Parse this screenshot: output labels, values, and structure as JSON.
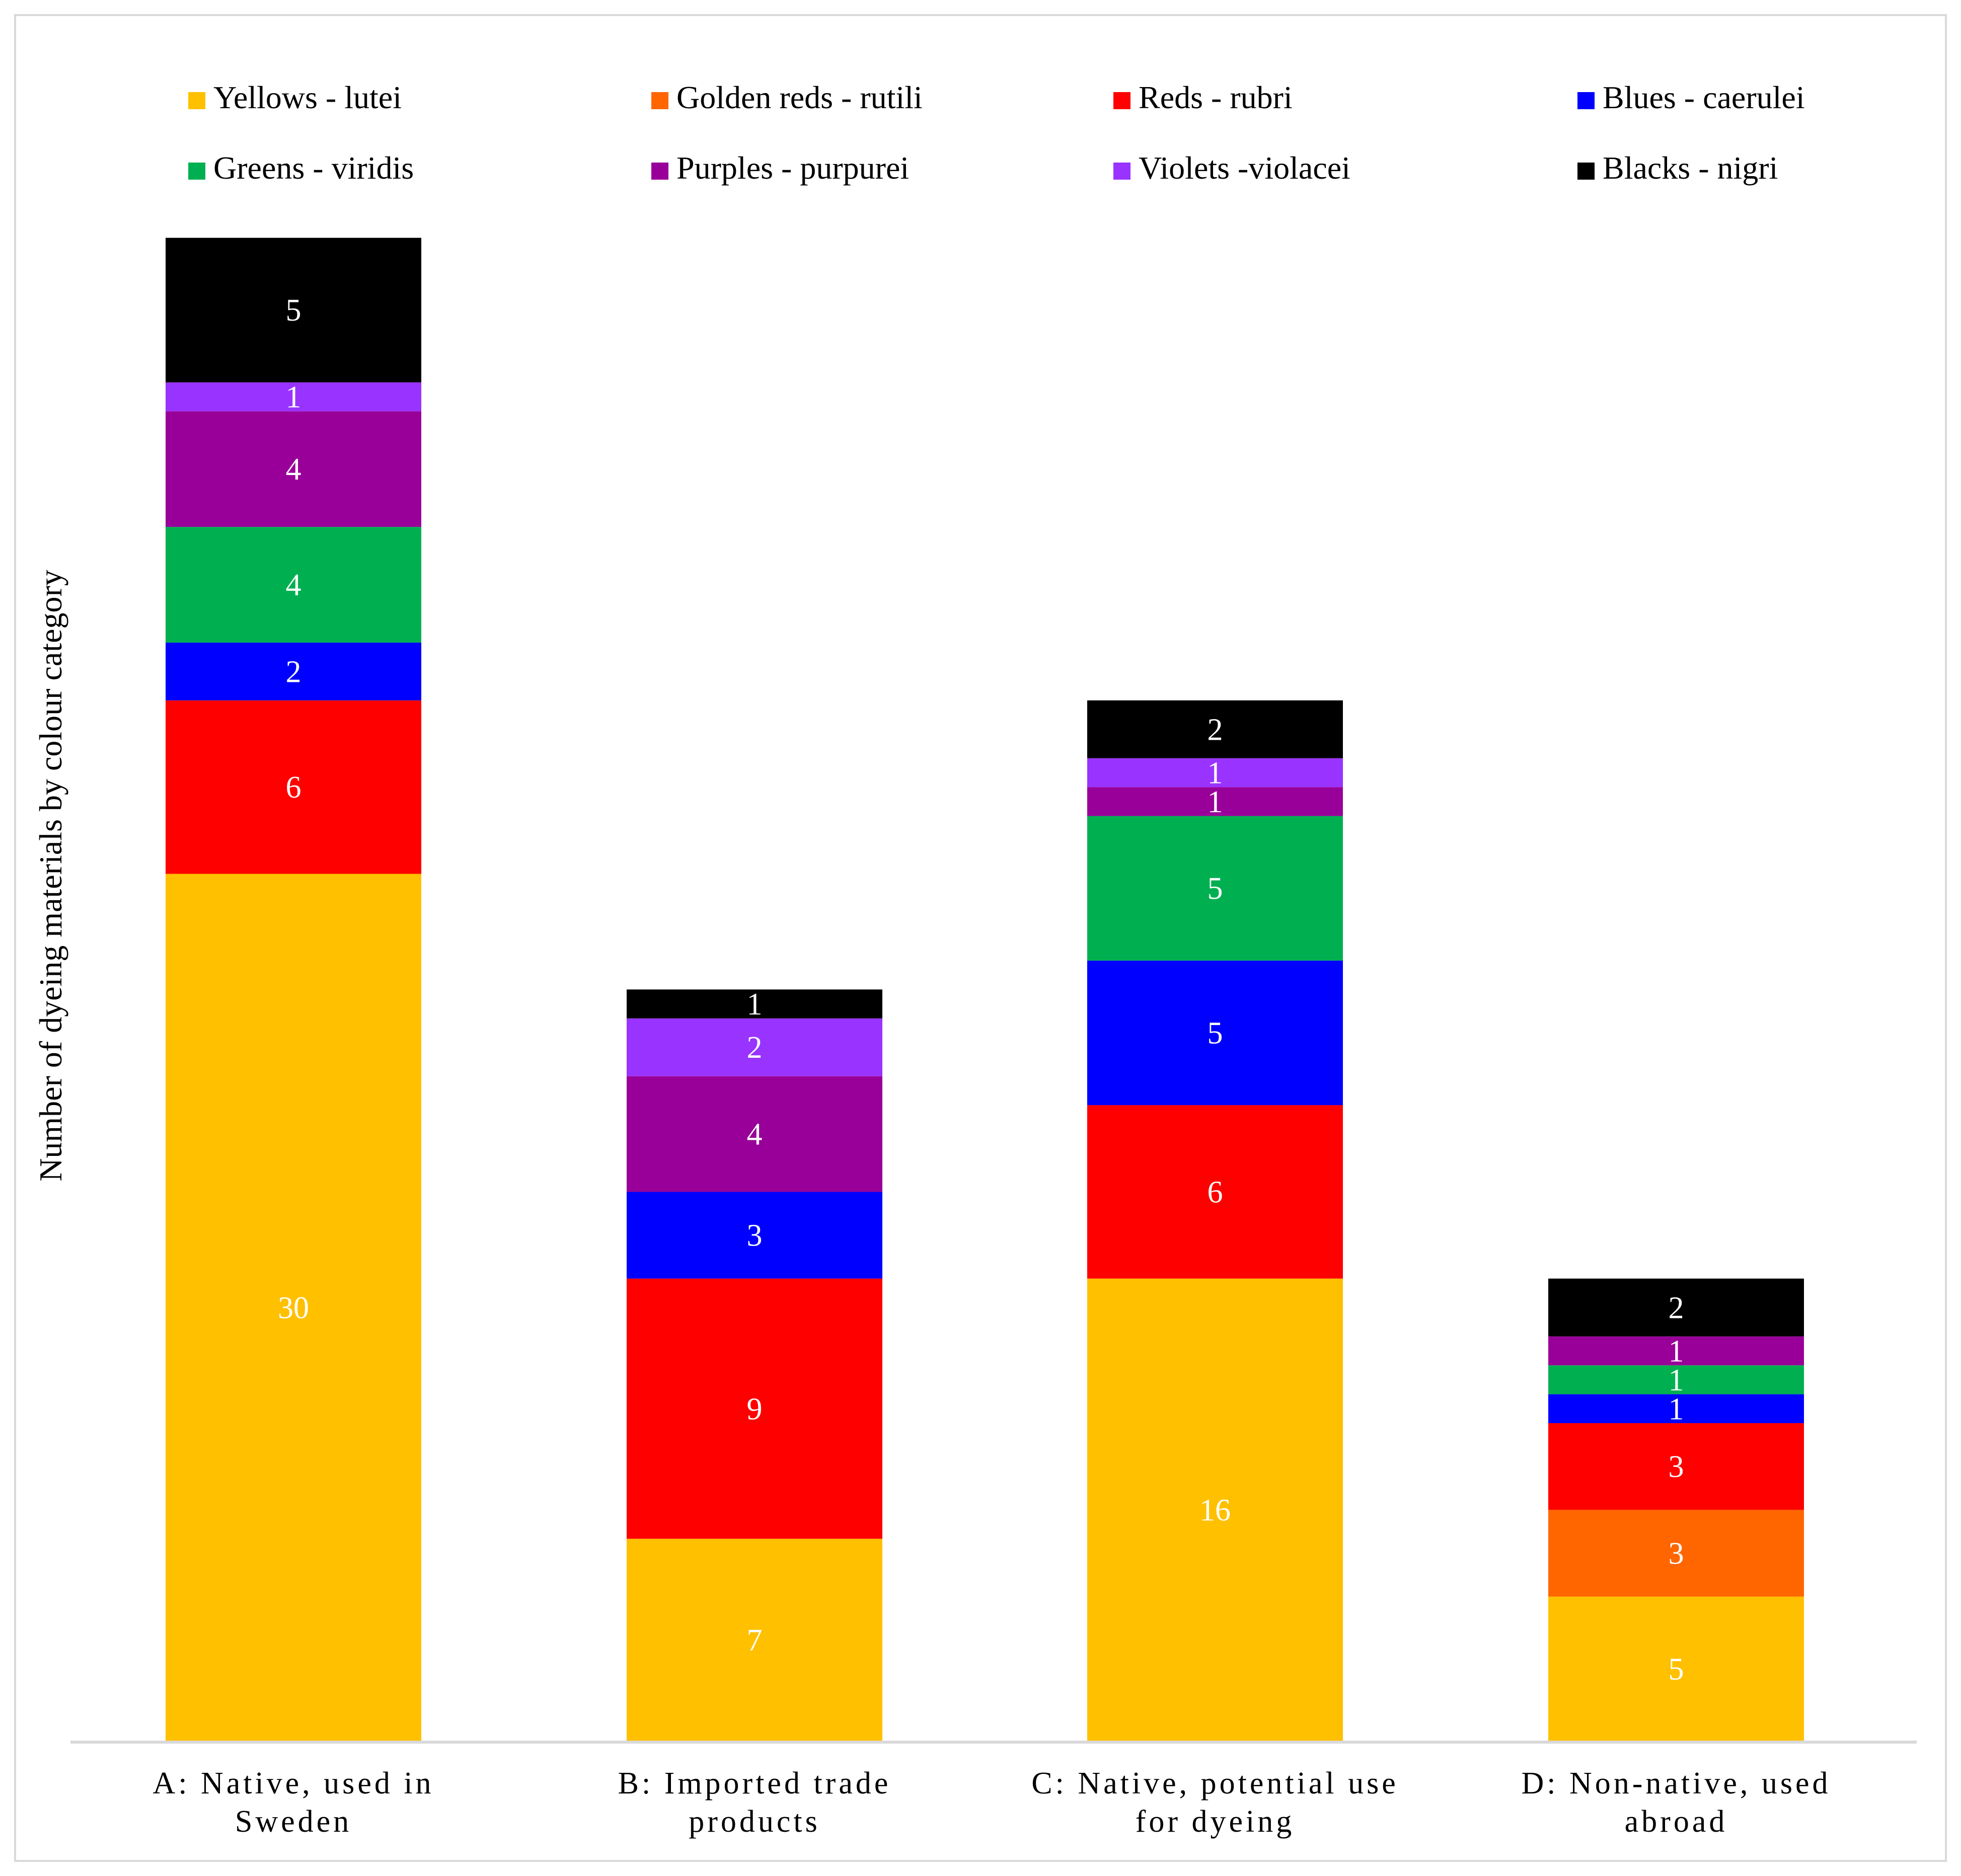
{
  "chart_data": {
    "type": "bar",
    "stacked": true,
    "title": "",
    "xlabel": "",
    "ylabel": "Number of dyeing materials  by colour category",
    "ylim": [
      0,
      52
    ],
    "grid": false,
    "legend_position": "top",
    "categories": [
      [
        "A: Native, used in",
        "Sweden"
      ],
      [
        "B: Imported trade",
        "products"
      ],
      [
        "C: Native, potential use",
        "for dyeing"
      ],
      [
        "D: Non-native, used",
        "abroad"
      ]
    ],
    "series": [
      {
        "name": "Yellows - lutei",
        "color": "#FFC000",
        "values": [
          30,
          7,
          16,
          5
        ]
      },
      {
        "name": "Golden reds - rutili",
        "color": "#FF6600",
        "values": [
          0,
          0,
          0,
          3
        ]
      },
      {
        "name": "Reds - rubri",
        "color": "#FF0000",
        "values": [
          6,
          9,
          6,
          3
        ]
      },
      {
        "name": "Blues - caerulei",
        "color": "#0000FF",
        "values": [
          2,
          3,
          5,
          1
        ]
      },
      {
        "name": "Greens - viridis",
        "color": "#00B050",
        "values": [
          4,
          0,
          5,
          1
        ]
      },
      {
        "name": "Purples - purpurei",
        "color": "#990099",
        "values": [
          4,
          4,
          1,
          1
        ]
      },
      {
        "name": "Violets -violacei",
        "color": "#9933FF",
        "values": [
          1,
          2,
          1,
          0
        ]
      },
      {
        "name": "Blacks - nigri",
        "color": "#000000",
        "values": [
          5,
          1,
          2,
          2
        ]
      }
    ]
  }
}
